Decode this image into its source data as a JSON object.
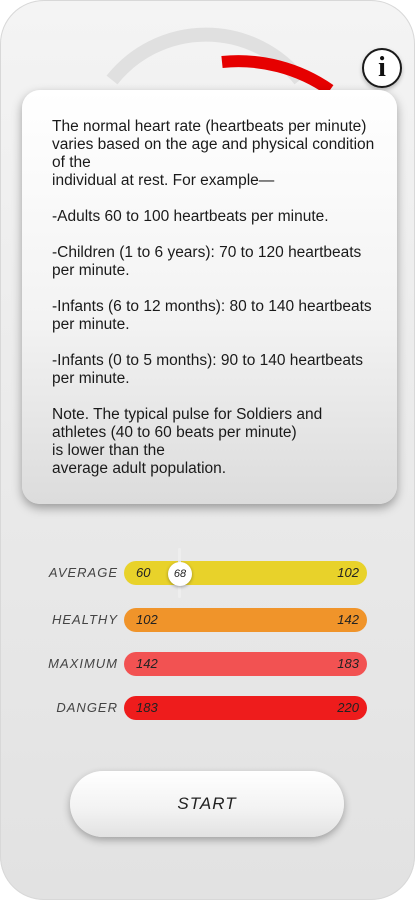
{
  "info_button": {
    "label": "i"
  },
  "info_panel": {
    "paragraphs": [
      " The normal heart rate (heartbeats per minute) varies based on the age and physical condition of the\nindividual at rest. For example—",
      "-Adults 60 to 100 heartbeats per minute.",
      "-Children (1 to 6 years): 70 to 120 heartbeats per minute.",
      "-Infants (6 to 12 months): 80 to 140 heartbeats per minute.",
      "-Infants (0 to 5 months): 90 to 140 heartbeats per minute.",
      "Note. The typical pulse for Soldiers and athletes (40 to 60 beats per minute)\nis lower than the\naverage adult population."
    ]
  },
  "zones": [
    {
      "label": "AVERAGE",
      "min": "60",
      "max": "102",
      "color": "#e8d22a"
    },
    {
      "label": "HEALTHY",
      "min": "102",
      "max": "142",
      "color": "#f0942a"
    },
    {
      "label": "MAXIMUM",
      "min": "142",
      "max": "183",
      "color": "#f25252"
    },
    {
      "label": "DANGER",
      "min": "183",
      "max": "220",
      "color": "#ee1c1c"
    }
  ],
  "slider": {
    "value": "68"
  },
  "start_button": {
    "label": "START"
  },
  "colors": {
    "gauge_accent": "#e60000"
  }
}
